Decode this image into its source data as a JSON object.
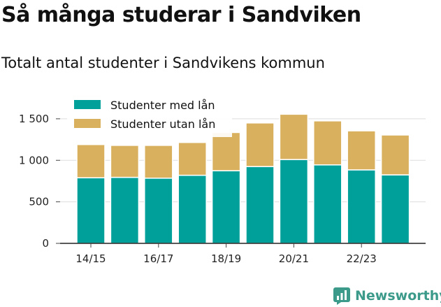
{
  "header": {
    "title": "Så många studerar i Sandviken",
    "subtitle": "Totalt antal studenter i Sandvikens kommun"
  },
  "brand": {
    "name": "Newsworthy",
    "icon": "newsworthy-logo-icon",
    "color": "#3c9a8a"
  },
  "chart_data": {
    "type": "bar",
    "stacked": true,
    "categories": [
      "14/15",
      "15/16",
      "16/17",
      "17/18",
      "18/19",
      "19/20",
      "20/21",
      "21/22",
      "22/23",
      "23/24"
    ],
    "x_tick_labels": [
      "14/15",
      "",
      "16/17",
      "",
      "18/19",
      "",
      "20/21",
      "",
      "22/23",
      ""
    ],
    "series": [
      {
        "name": "Studenter med lån",
        "color": "#00a09a",
        "values": [
          790,
          795,
          785,
          820,
          875,
          925,
          1010,
          945,
          885,
          825
        ]
      },
      {
        "name": "Studenter utan lån",
        "color": "#d9b05e",
        "values": [
          400,
          385,
          395,
          395,
          460,
          525,
          545,
          530,
          470,
          480
        ]
      }
    ],
    "ylim": [
      0,
      1600
    ],
    "yticks": [
      0,
      500,
      1000,
      1500
    ],
    "ytick_labels": [
      "0",
      "500",
      "1 000",
      "1 500"
    ],
    "grid": true,
    "legend_position": "top-left"
  }
}
